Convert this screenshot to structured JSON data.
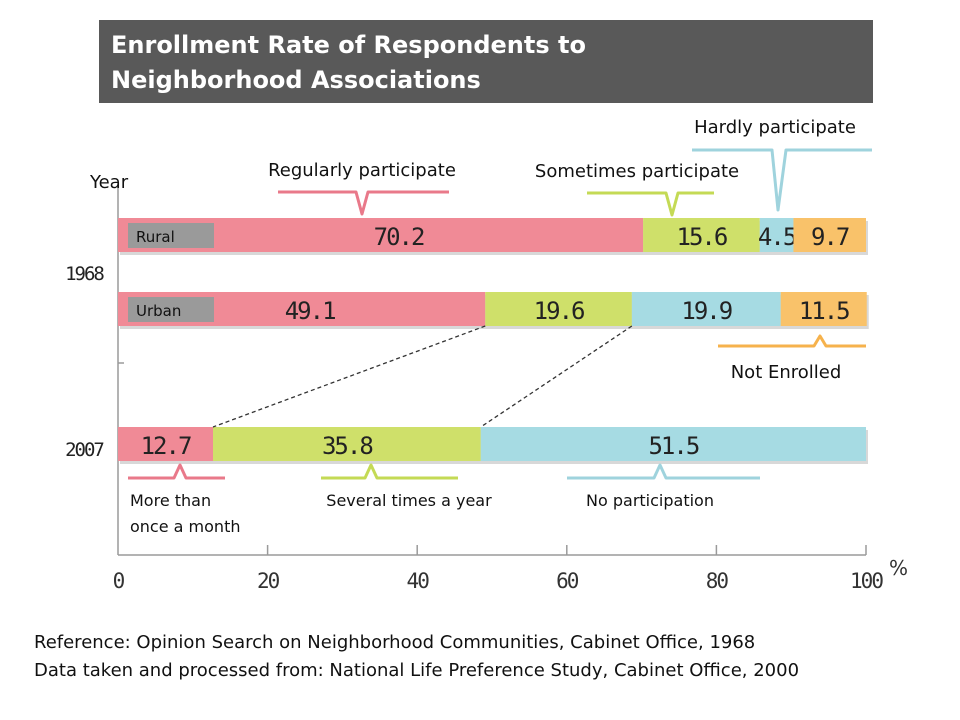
{
  "title": {
    "line1": "Enrollment Rate of Respondents to",
    "line2": "Neighborhood Associations"
  },
  "references": [
    "Reference: Opinion Search on Neighborhood Communities, Cabinet Office, 1968",
    "Data taken and processed from: National Life Preference Study, Cabinet Office, 2000"
  ],
  "chart_data": {
    "type": "bar",
    "orientation": "horizontal",
    "stacked": true,
    "ylabel": "Year",
    "xunit": "%",
    "xlim": [
      0,
      100
    ],
    "xticks": [
      0,
      20,
      40,
      60,
      80,
      100
    ],
    "grid": false,
    "rows": [
      {
        "year": "1968",
        "tag": "Rural",
        "values": [
          70.2,
          15.6,
          4.5,
          9.7
        ],
        "value_labels": [
          "70.2",
          "15.6",
          "4.5",
          "9.7"
        ],
        "colors": [
          "#f08a96",
          "#cfe06a",
          "#a6dbe3",
          "#f9c26a"
        ]
      },
      {
        "year": "",
        "tag": "Urban",
        "values": [
          49.1,
          19.6,
          19.9,
          11.5
        ],
        "value_labels": [
          "49.1",
          "19.6",
          "19.9",
          "11.5"
        ],
        "colors": [
          "#f08a96",
          "#cfe06a",
          "#a6dbe3",
          "#f9c26a"
        ]
      },
      {
        "year": "2007",
        "tag": "",
        "values": [
          12.7,
          35.8,
          51.5
        ],
        "value_labels": [
          "12.7",
          "35.8",
          "51.5"
        ],
        "colors": [
          "#f08a96",
          "#cfe06a",
          "#a6dbe3"
        ]
      }
    ],
    "category_labels_1968": [
      "Regularly participate",
      "Sometimes participate",
      "Hardly participate",
      "Not Enrolled"
    ],
    "category_labels_2007": [
      "More than\nonce a month",
      "Several times a year",
      "No participation"
    ],
    "colors": {
      "regular": "#f08a96",
      "sometimes": "#cfe06a",
      "hardly": "#a6dbe3",
      "not_enrolled": "#f9c26a",
      "tag_bg": "#9a9a9a",
      "bracket_pink": "#e9798a",
      "bracket_green": "#c4da55",
      "bracket_blue": "#9fd3dd",
      "bracket_orange": "#f6b24c"
    }
  }
}
